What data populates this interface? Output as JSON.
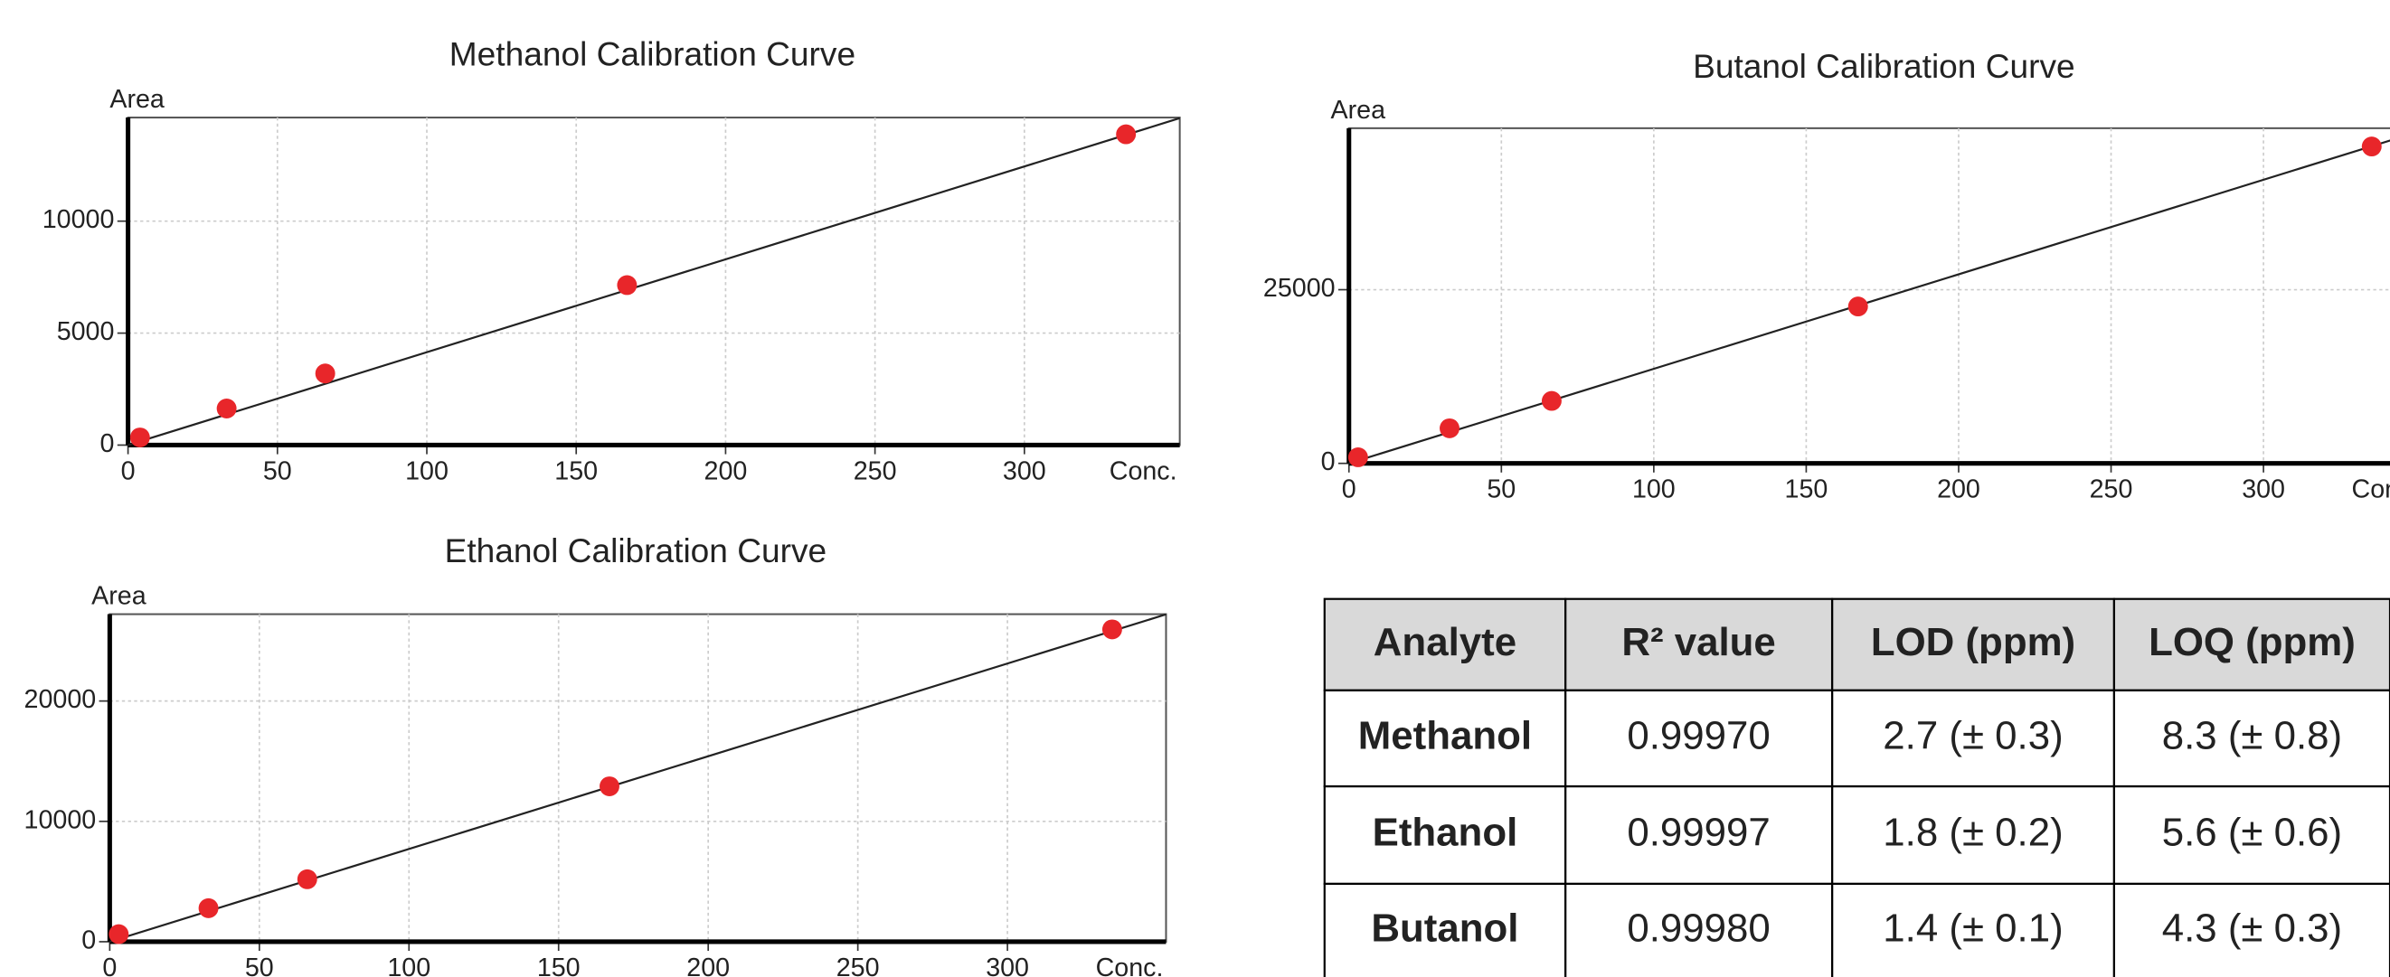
{
  "chart_data": [
    {
      "type": "scatter",
      "title": "Methanol Calibration Curve",
      "ylabel": "Area",
      "xlabel": "Conc.",
      "series": [
        {
          "name": "Methanol",
          "color": "#e8262a",
          "x": [
            4,
            33,
            66,
            167,
            334
          ],
          "values": [
            340,
            1633,
            3197,
            7143,
            13878
          ]
        }
      ],
      "fit": {
        "x": [
          0,
          352
        ],
        "values": [
          0,
          14600
        ]
      },
      "xlim": [
        0,
        352
      ],
      "ylim": [
        0,
        14626
      ],
      "xticks": [
        0,
        50,
        100,
        150,
        200,
        250,
        300
      ],
      "yticks": [
        0,
        5000,
        10000
      ],
      "grid": true
    },
    {
      "type": "scatter",
      "title": "Ethanol Calibration Curve",
      "ylabel": "Area",
      "xlabel": "Conc.",
      "series": [
        {
          "name": "Ethanol",
          "color": "#e8262a",
          "x": [
            3,
            33,
            66,
            167,
            335
          ],
          "values": [
            630,
            2785,
            5190,
            12911,
            25949
          ]
        }
      ],
      "fit": {
        "x": [
          0,
          353
        ],
        "values": [
          0,
          27200
        ]
      },
      "xlim": [
        0,
        353
      ],
      "ylim": [
        0,
        27215
      ],
      "xticks": [
        0,
        50,
        100,
        150,
        200,
        250,
        300
      ],
      "yticks": [
        0,
        10000,
        20000
      ],
      "grid": true
    },
    {
      "type": "scatter",
      "title": "Butanol Calibration Curve",
      "ylabel": "Area",
      "xlabel": "Conc.",
      "series": [
        {
          "name": "Butanol",
          "color": "#e8262a",
          "x": [
            3,
            33,
            66.5,
            167,
            335.5
          ],
          "values": [
            877,
            5044,
            8991,
            22588,
            45614
          ]
        }
      ],
      "fit": {
        "x": [
          0,
          352
        ],
        "values": [
          0,
          47900
        ]
      },
      "xlim": [
        0,
        352
      ],
      "ylim": [
        0,
        48246
      ],
      "xticks": [
        0,
        50,
        100,
        150,
        200,
        250,
        300
      ],
      "yticks": [
        0,
        25000
      ],
      "grid": true
    }
  ],
  "table": {
    "header": [
      "Analyte",
      "R² value",
      "LOD (ppm)",
      "LOQ (ppm)"
    ],
    "rows": [
      [
        "Methanol",
        "0.99970",
        "2.7 (± 0.3)",
        "8.3 (± 0.8)"
      ],
      [
        "Ethanol",
        "0.99997",
        "1.8 (± 0.2)",
        "5.6 (± 0.6)"
      ],
      [
        "Butanol",
        "0.99980",
        "1.4 (± 0.1)",
        "4.3 (± 0.3)"
      ]
    ]
  }
}
